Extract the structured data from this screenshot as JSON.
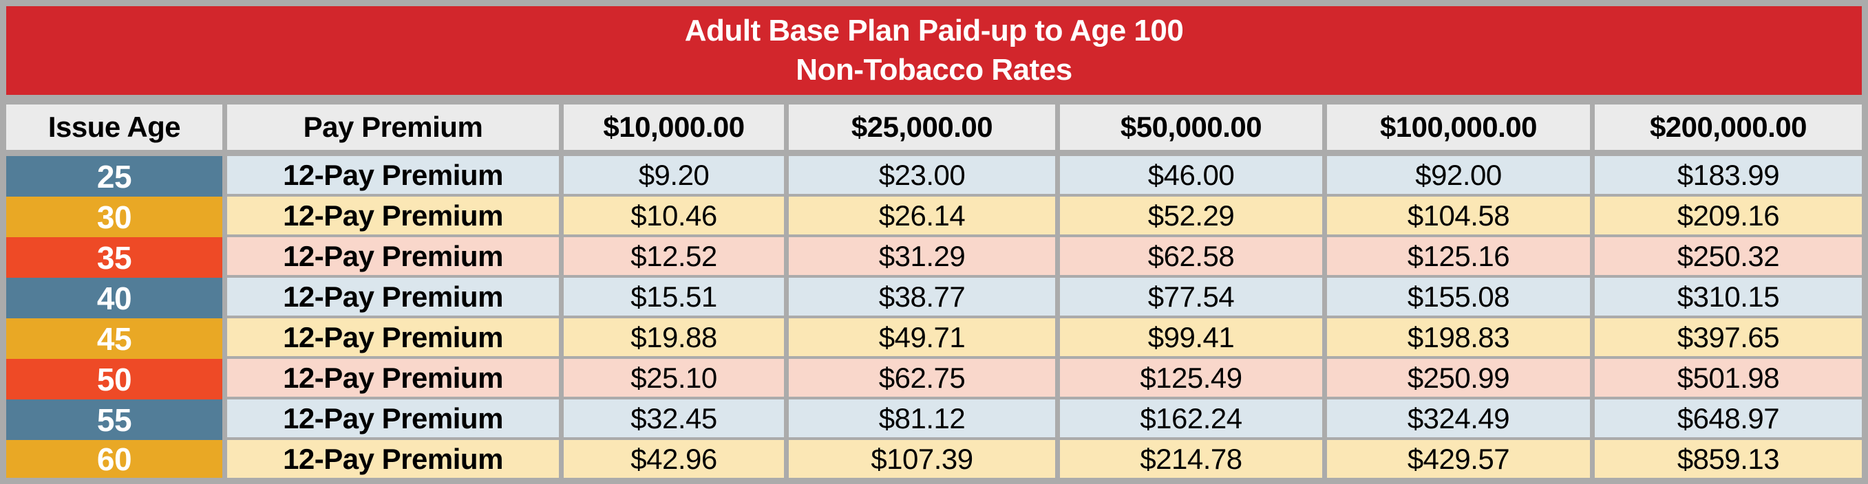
{
  "chart_data": {
    "type": "table",
    "title": "Adult Base Plan Paid-up to Age 100",
    "subtitle": "Non-Tobacco Rates",
    "columns": [
      "Issue Age",
      "Pay Premium",
      "$10,000.00",
      "$25,000.00",
      "$50,000.00",
      "$100,000.00",
      "$200,000.00"
    ],
    "rows": [
      [
        "25",
        "12-Pay Premium",
        "$9.20",
        "$23.00",
        "$46.00",
        "$92.00",
        "$183.99"
      ],
      [
        "30",
        "12-Pay Premium",
        "$10.46",
        "$26.14",
        "$52.29",
        "$104.58",
        "$209.16"
      ],
      [
        "35",
        "12-Pay Premium",
        "$12.52",
        "$31.29",
        "$62.58",
        "$125.16",
        "$250.32"
      ],
      [
        "40",
        "12-Pay Premium",
        "$15.51",
        "$38.77",
        "$77.54",
        "$155.08",
        "$310.15"
      ],
      [
        "45",
        "12-Pay Premium",
        "$19.88",
        "$49.71",
        "$99.41",
        "$198.83",
        "$397.65"
      ],
      [
        "50",
        "12-Pay Premium",
        "$25.10",
        "$62.75",
        "$125.49",
        "$250.99",
        "$501.98"
      ],
      [
        "55",
        "12-Pay Premium",
        "$32.45",
        "$81.12",
        "$162.24",
        "$324.49",
        "$648.97"
      ],
      [
        "60",
        "12-Pay Premium",
        "$42.96",
        "$107.39",
        "$214.78",
        "$429.57",
        "$859.13"
      ]
    ]
  },
  "colors": {
    "title_bar": "#d2262c",
    "frame_gray": "#ababab",
    "header_row": "#ebebeb",
    "age_blue": "#527d98",
    "age_gold": "#e9a825",
    "age_orange_red": "#ee4a26",
    "row_tint_blue": "#dbe6ed",
    "row_tint_cream": "#fbe7b5",
    "row_tint_pink": "#f9d7cb",
    "title_text": "#ffffff",
    "body_text": "#000000"
  }
}
